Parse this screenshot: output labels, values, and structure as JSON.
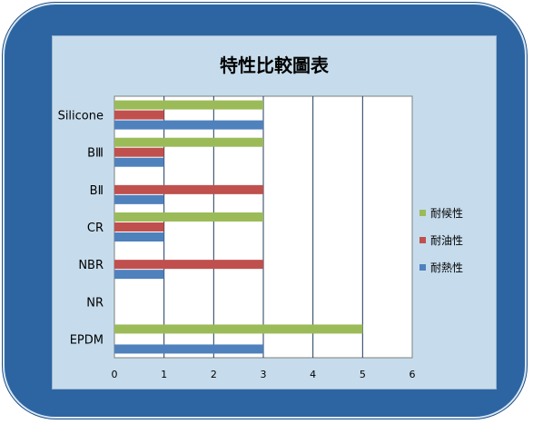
{
  "chart_data": {
    "type": "bar",
    "orientation": "horizontal",
    "title": "特性比較圖表",
    "categories": [
      "Silicone",
      "BⅢ",
      "BⅡ",
      "CR",
      "NBR",
      "NR",
      "EPDM"
    ],
    "series": [
      {
        "name": "耐候性",
        "color": "#9bbb59",
        "values": [
          3,
          3,
          0,
          3,
          0,
          0,
          5
        ]
      },
      {
        "name": "耐油性",
        "color": "#c0504d",
        "values": [
          1,
          1,
          3,
          1,
          3,
          0,
          0
        ]
      },
      {
        "name": "耐熱性",
        "color": "#4f81bd",
        "values": [
          3,
          1,
          1,
          1,
          1,
          0,
          3
        ]
      }
    ],
    "xlim": [
      0,
      6
    ],
    "xticks": [
      "0",
      "1",
      "2",
      "3",
      "4",
      "5",
      "6"
    ],
    "grid": true,
    "legend_position": "right"
  }
}
